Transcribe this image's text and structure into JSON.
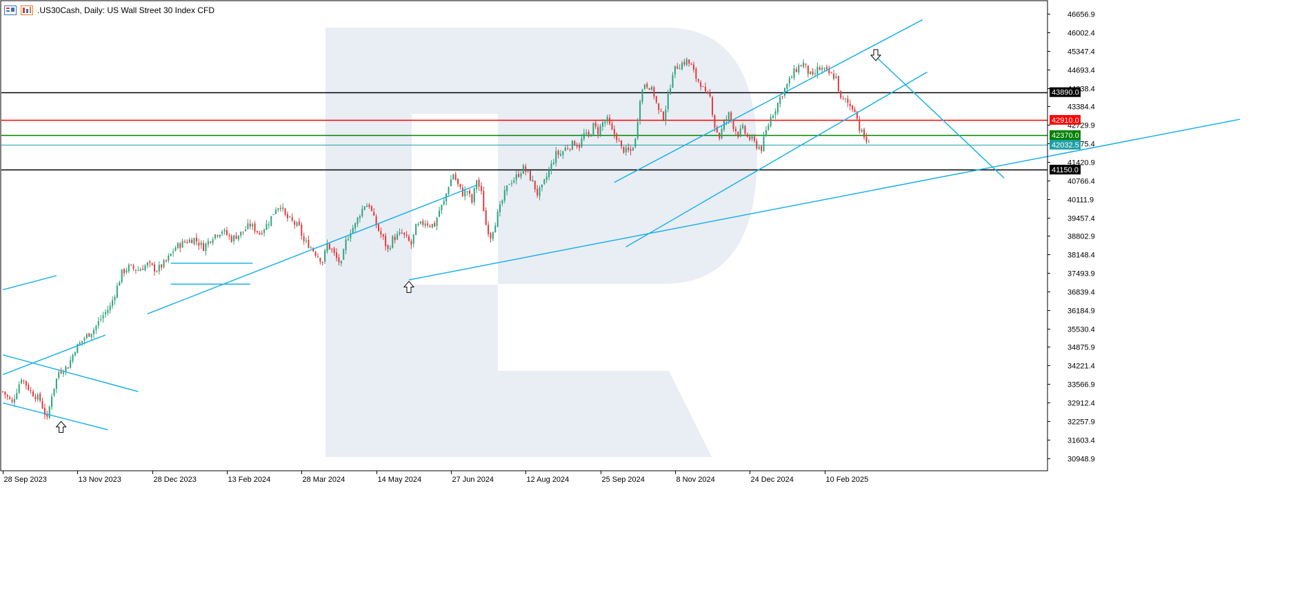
{
  "header": {
    "title": ".US30Cash, Daily:  US Wall Street 30 Index CFD",
    "icons": [
      "chart-window-icon",
      "timeframe-icon"
    ]
  },
  "colors": {
    "bull_candle": "#2aa37a",
    "bear_candle": "#e03a3a",
    "trendline": "#1ab0ea",
    "watermark": "#e9edf4",
    "black_level": "#000000",
    "red_level": "#ff0000",
    "green_level": "#008000",
    "current_price": "#1e9fa5"
  },
  "chart_data": {
    "type": "candlestick",
    "symbol": ".US30Cash",
    "timeframe": "Daily",
    "ylim": [
      30500,
      47100
    ],
    "y_ticks": [
      "46656.9",
      "46002.4",
      "45347.4",
      "44693.4",
      "44038.4",
      "43384.4",
      "42729.9",
      "42075.4",
      "41420.9",
      "40766.4",
      "40111.9",
      "39457.4",
      "38802.9",
      "38148.4",
      "37493.9",
      "36839.4",
      "36184.9",
      "35530.4",
      "34875.9",
      "34221.4",
      "33566.9",
      "32912.4",
      "32257.9",
      "31603.4",
      "30948.9"
    ],
    "x_ticks": [
      {
        "label": "28 Sep 2023",
        "day": 0
      },
      {
        "label": "13 Nov 2023",
        "day": 32
      },
      {
        "label": "28 Dec 2023",
        "day": 64
      },
      {
        "label": "13 Feb 2024",
        "day": 96
      },
      {
        "label": "28 Mar 2024",
        "day": 128
      },
      {
        "label": "14 May 2024",
        "day": 160
      },
      {
        "label": "27 Jun 2024",
        "day": 192
      },
      {
        "label": "12 Aug 2024",
        "day": 224
      },
      {
        "label": "25 Sep 2024",
        "day": 256
      },
      {
        "label": "8 Nov 2024",
        "day": 288
      },
      {
        "label": "24 Dec 2024",
        "day": 320
      },
      {
        "label": "10 Feb 2025",
        "day": 352
      }
    ],
    "levels": [
      {
        "price": 43890.0,
        "label": "43890.0",
        "color": "#000000"
      },
      {
        "price": 42910.0,
        "label": "42910.0",
        "color": "#ff0000"
      },
      {
        "price": 42370.0,
        "label": "42370.0",
        "color": "#008000"
      },
      {
        "price": 42032.5,
        "label": "42032.5",
        "color": "#1e9fa5"
      },
      {
        "price": 41150.0,
        "label": "41150.0",
        "color": "#000000"
      }
    ],
    "close_path": [
      [
        0,
        33300
      ],
      [
        4,
        32900
      ],
      [
        8,
        33800
      ],
      [
        12,
        33300
      ],
      [
        16,
        33000
      ],
      [
        19,
        32300
      ],
      [
        21,
        33200
      ],
      [
        24,
        34000
      ],
      [
        28,
        34200
      ],
      [
        31,
        34800
      ],
      [
        35,
        35200
      ],
      [
        39,
        35500
      ],
      [
        43,
        36000
      ],
      [
        46,
        36300
      ],
      [
        49,
        37000
      ],
      [
        51,
        37500
      ],
      [
        54,
        37700
      ],
      [
        58,
        37600
      ],
      [
        62,
        37800
      ],
      [
        66,
        37600
      ],
      [
        70,
        37900
      ],
      [
        74,
        38400
      ],
      [
        78,
        38600
      ],
      [
        82,
        38700
      ],
      [
        86,
        38400
      ],
      [
        90,
        38800
      ],
      [
        94,
        39000
      ],
      [
        98,
        38700
      ],
      [
        102,
        38900
      ],
      [
        106,
        39200
      ],
      [
        110,
        38900
      ],
      [
        114,
        39300
      ],
      [
        117,
        39800
      ],
      [
        119,
        39900
      ],
      [
        121,
        39500
      ],
      [
        124,
        39300
      ],
      [
        127,
        39100
      ],
      [
        129,
        38600
      ],
      [
        131,
        38500
      ],
      [
        133,
        38300
      ],
      [
        135,
        38100
      ],
      [
        137,
        37900
      ],
      [
        139,
        38500
      ],
      [
        141,
        38300
      ],
      [
        143,
        38000
      ],
      [
        145,
        37800
      ],
      [
        147,
        38600
      ],
      [
        149,
        39000
      ],
      [
        151,
        39200
      ],
      [
        153,
        39600
      ],
      [
        155,
        39900
      ],
      [
        157,
        39900
      ],
      [
        159,
        39400
      ],
      [
        161,
        39000
      ],
      [
        163,
        38700
      ],
      [
        165,
        38300
      ],
      [
        167,
        38700
      ],
      [
        169,
        38800
      ],
      [
        171,
        38900
      ],
      [
        173,
        38700
      ],
      [
        175,
        38500
      ],
      [
        177,
        39100
      ],
      [
        179,
        39200
      ],
      [
        181,
        39300
      ],
      [
        183,
        39200
      ],
      [
        185,
        39200
      ],
      [
        187,
        39700
      ],
      [
        189,
        40000
      ],
      [
        191,
        40600
      ],
      [
        193,
        41000
      ],
      [
        195,
        40600
      ],
      [
        197,
        40300
      ],
      [
        199,
        40400
      ],
      [
        201,
        40000
      ],
      [
        203,
        40800
      ],
      [
        205,
        40300
      ],
      [
        207,
        39200
      ],
      [
        209,
        38800
      ],
      [
        211,
        39300
      ],
      [
        213,
        39800
      ],
      [
        215,
        40300
      ],
      [
        217,
        40700
      ],
      [
        219,
        40800
      ],
      [
        221,
        41000
      ],
      [
        223,
        41200
      ],
      [
        225,
        41000
      ],
      [
        227,
        40700
      ],
      [
        229,
        40300
      ],
      [
        231,
        40500
      ],
      [
        233,
        40900
      ],
      [
        235,
        41300
      ],
      [
        237,
        41700
      ],
      [
        239,
        41700
      ],
      [
        241,
        41900
      ],
      [
        243,
        42000
      ],
      [
        245,
        42100
      ],
      [
        247,
        42000
      ],
      [
        249,
        42400
      ],
      [
        251,
        42300
      ],
      [
        253,
        42700
      ],
      [
        255,
        42500
      ],
      [
        257,
        42800
      ],
      [
        259,
        42900
      ],
      [
        261,
        42500
      ],
      [
        263,
        42300
      ],
      [
        265,
        41900
      ],
      [
        267,
        41800
      ],
      [
        269,
        41800
      ],
      [
        271,
        42200
      ],
      [
        273,
        43700
      ],
      [
        275,
        44200
      ],
      [
        277,
        44100
      ],
      [
        279,
        43800
      ],
      [
        281,
        43200
      ],
      [
        283,
        43000
      ],
      [
        285,
        43700
      ],
      [
        287,
        44600
      ],
      [
        289,
        44800
      ],
      [
        291,
        44900
      ],
      [
        293,
        45000
      ],
      [
        295,
        44800
      ],
      [
        297,
        44400
      ],
      [
        299,
        44200
      ],
      [
        301,
        43800
      ],
      [
        303,
        43700
      ],
      [
        305,
        42700
      ],
      [
        307,
        42300
      ],
      [
        309,
        42800
      ],
      [
        311,
        43100
      ],
      [
        313,
        42700
      ],
      [
        315,
        42400
      ],
      [
        317,
        42600
      ],
      [
        319,
        42300
      ],
      [
        321,
        42200
      ],
      [
        323,
        42000
      ],
      [
        325,
        41900
      ],
      [
        327,
        42500
      ],
      [
        329,
        43000
      ],
      [
        331,
        43300
      ],
      [
        333,
        43700
      ],
      [
        335,
        44000
      ],
      [
        337,
        44300
      ],
      [
        339,
        44600
      ],
      [
        341,
        44800
      ],
      [
        343,
        44900
      ],
      [
        345,
        44600
      ],
      [
        347,
        44400
      ],
      [
        349,
        44700
      ],
      [
        351,
        44700
      ],
      [
        353,
        44600
      ],
      [
        355,
        44500
      ],
      [
        357,
        44400
      ],
      [
        359,
        43600
      ],
      [
        361,
        43600
      ],
      [
        363,
        43400
      ],
      [
        365,
        43300
      ],
      [
        367,
        42600
      ],
      [
        369,
        42300
      ],
      [
        371,
        42032
      ]
    ],
    "trendlines": [
      {
        "p1": [
          0,
          33900
        ],
        "p2": [
          44,
          35300
        ]
      },
      {
        "p1": [
          0,
          34600
        ],
        "p2": [
          58,
          33300
        ]
      },
      {
        "p1": [
          0,
          32900
        ],
        "p2": [
          45,
          31950
        ]
      },
      {
        "p1": [
          0,
          36900
        ],
        "p2": [
          23,
          37400
        ]
      },
      {
        "p1": [
          62,
          36050
        ],
        "p2": [
          203,
          40600
        ]
      },
      {
        "p1": [
          72,
          37840
        ],
        "p2": [
          107,
          37840
        ]
      },
      {
        "p1": [
          72,
          37100
        ],
        "p2": [
          106,
          37100
        ]
      },
      {
        "p1": [
          174,
          37250
        ],
        "p2": [
          530,
          42930
        ]
      },
      {
        "p1": [
          262,
          40700
        ],
        "p2": [
          394,
          46450
        ]
      },
      {
        "p1": [
          267,
          38420
        ],
        "p2": [
          396,
          44600
        ]
      },
      {
        "p1": [
          374,
          45150
        ],
        "p2": [
          429,
          40850
        ]
      }
    ],
    "arrows": [
      {
        "day": 25,
        "price": 32050,
        "dir": "up"
      },
      {
        "day": 174,
        "price": 37000,
        "dir": "up"
      },
      {
        "day": 374,
        "price": 45200,
        "dir": "down"
      }
    ]
  }
}
